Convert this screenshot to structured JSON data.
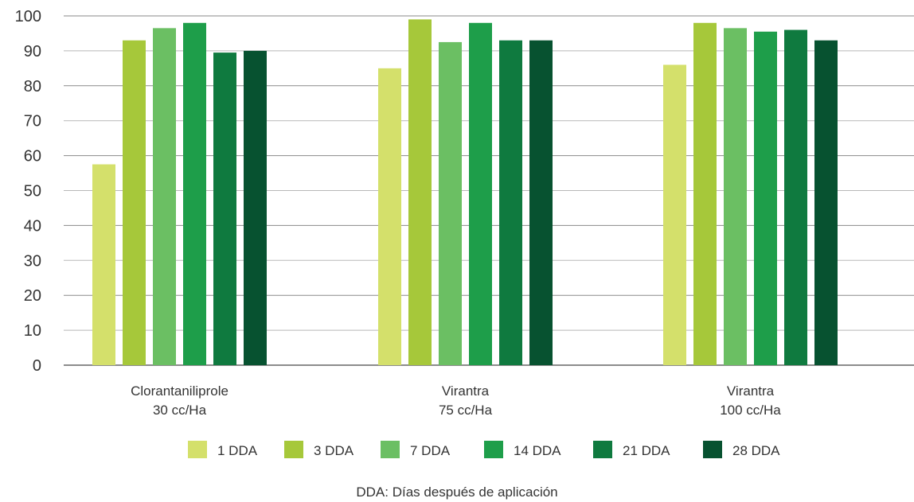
{
  "chart_data": {
    "type": "bar",
    "categories": [
      [
        "Clorantaniliprole",
        "30 cc/Ha"
      ],
      [
        "Virantra",
        "75 cc/Ha"
      ],
      [
        "Virantra",
        "100 cc/Ha"
      ]
    ],
    "series": [
      {
        "name": "1 DDA",
        "color": "#d4e06b",
        "values": [
          57.5,
          85,
          86
        ]
      },
      {
        "name": "3 DDA",
        "color": "#a6c83a",
        "values": [
          93,
          99,
          98
        ]
      },
      {
        "name": "7 DDA",
        "color": "#6bbf63",
        "values": [
          96.5,
          92.5,
          96.5
        ]
      },
      {
        "name": "14 DDA",
        "color": "#1e9e4a",
        "values": [
          98,
          98,
          95.5
        ]
      },
      {
        "name": "21 DDA",
        "color": "#0f7a3f",
        "values": [
          89.5,
          93,
          96
        ]
      },
      {
        "name": "28 DDA",
        "color": "#075230",
        "values": [
          90,
          93,
          93
        ]
      }
    ],
    "y_ticks": [
      0,
      10,
      20,
      30,
      40,
      50,
      60,
      70,
      80,
      90,
      100
    ],
    "ylim": [
      0,
      100
    ],
    "grid": true,
    "legend_position": "bottom",
    "title": "",
    "xlabel": "",
    "ylabel": "",
    "footnote": "DDA: Días después de aplicación"
  }
}
